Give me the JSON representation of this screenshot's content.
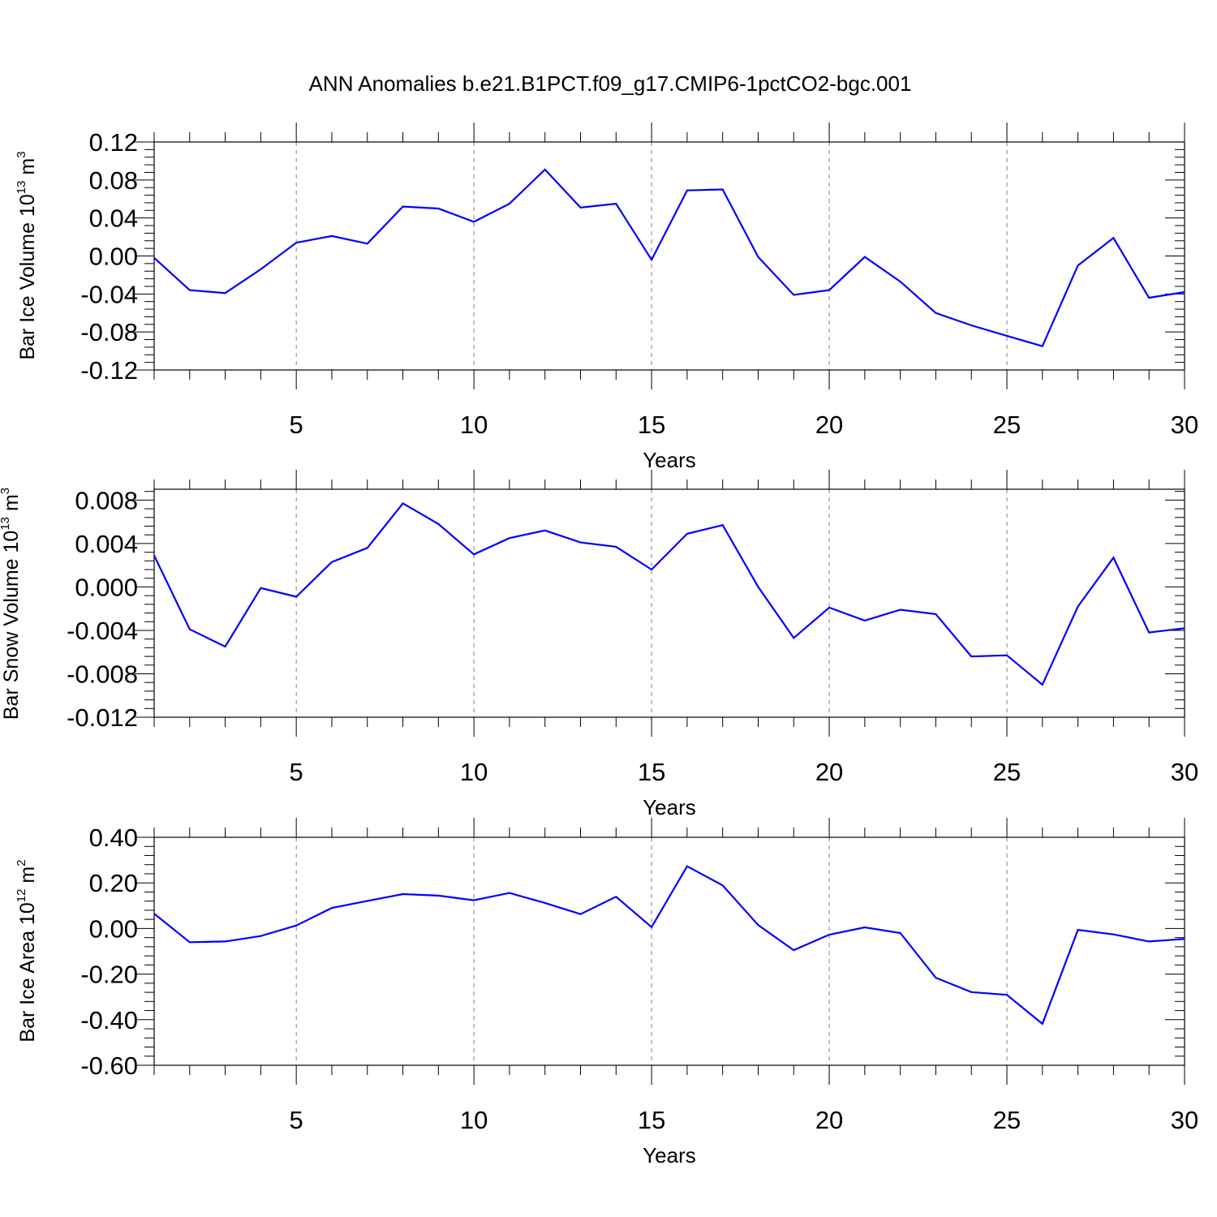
{
  "figure": {
    "title": "ANN Anomalies b.e21.B1PCT.f09_g17.CMIP6-1pctCO2-bgc.001",
    "line_color": "#0000ff"
  },
  "chart_data": [
    {
      "type": "line",
      "ylabel": {
        "main": "Bar Ice Volume 10",
        "exp": "13",
        "unit": " m",
        "unit_exp": "3"
      },
      "xlabel": "Years",
      "xlim": [
        1,
        30
      ],
      "ylim": [
        -0.12,
        0.12
      ],
      "xticks": [
        5,
        10,
        15,
        20,
        25,
        30
      ],
      "yticks": [
        -0.12,
        -0.08,
        -0.04,
        0.0,
        0.04,
        0.08,
        0.12
      ],
      "ytick_labels": [
        "-0.12",
        "-0.08",
        "-0.04",
        "0.00",
        "0.04",
        "0.08",
        "0.12"
      ],
      "grid": "vertical dashed at major x ticks",
      "series": [
        {
          "x": [
            1,
            2,
            3,
            4,
            5,
            6,
            7,
            8,
            9,
            10,
            11,
            12,
            13,
            14,
            15,
            16,
            17,
            18,
            19,
            20,
            21,
            22,
            23,
            24,
            25,
            26,
            27,
            28,
            29,
            30
          ],
          "values": [
            -0.002,
            -0.036,
            -0.039,
            -0.014,
            0.014,
            0.021,
            0.013,
            0.052,
            0.05,
            0.036,
            0.055,
            0.091,
            0.051,
            0.055,
            -0.004,
            0.069,
            0.07,
            -0.001,
            -0.041,
            -0.036,
            -0.001,
            -0.027,
            -0.06,
            -0.073,
            -0.084,
            -0.095,
            -0.01,
            0.019,
            -0.044,
            -0.038
          ]
        }
      ]
    },
    {
      "type": "line",
      "ylabel": {
        "main": "Bar Snow Volume 10",
        "exp": "13",
        "unit": " m",
        "unit_exp": "3"
      },
      "xlabel": "Years",
      "xlim": [
        1,
        30
      ],
      "ylim": [
        -0.012,
        0.009
      ],
      "xticks": [
        5,
        10,
        15,
        20,
        25,
        30
      ],
      "yticks": [
        -0.012,
        -0.008,
        -0.004,
        0.0,
        0.004,
        0.008
      ],
      "ytick_labels": [
        "-0.012",
        "-0.008",
        "-0.004",
        "0.000",
        "0.004",
        "0.008"
      ],
      "grid": "vertical dashed at major x ticks",
      "series": [
        {
          "x": [
            1,
            2,
            3,
            4,
            5,
            6,
            7,
            8,
            9,
            10,
            11,
            12,
            13,
            14,
            15,
            16,
            17,
            18,
            19,
            20,
            21,
            22,
            23,
            24,
            25,
            26,
            27,
            28,
            29,
            30
          ],
          "values": [
            0.0029,
            -0.0039,
            -0.0055,
            -0.0001,
            -0.0009,
            0.0023,
            0.0036,
            0.0077,
            0.0058,
            0.003,
            0.0045,
            0.0052,
            0.0041,
            0.0037,
            0.0016,
            0.0049,
            0.0057,
            0.0,
            -0.0047,
            -0.0019,
            -0.0031,
            -0.0021,
            -0.0025,
            -0.0064,
            -0.0063,
            -0.009,
            -0.0018,
            0.0027,
            -0.0042,
            -0.0038
          ]
        }
      ]
    },
    {
      "type": "line",
      "ylabel": {
        "main": "Bar Ice Area 10",
        "exp": "12",
        "unit": " m",
        "unit_exp": "2"
      },
      "xlabel": "Years",
      "xlim": [
        1,
        30
      ],
      "ylim": [
        -0.6,
        0.4
      ],
      "xticks": [
        5,
        10,
        15,
        20,
        25,
        30
      ],
      "yticks": [
        -0.6,
        -0.4,
        -0.2,
        0.0,
        0.2,
        0.4
      ],
      "ytick_labels": [
        "-0.60",
        "-0.40",
        "-0.20",
        "0.00",
        "0.20",
        "0.40"
      ],
      "grid": "vertical dashed at major x ticks",
      "series": [
        {
          "x": [
            1,
            2,
            3,
            4,
            5,
            6,
            7,
            8,
            9,
            10,
            11,
            12,
            13,
            14,
            15,
            16,
            17,
            18,
            19,
            20,
            21,
            22,
            23,
            24,
            25,
            26,
            27,
            28,
            29,
            30
          ],
          "values": [
            0.065,
            -0.06,
            -0.057,
            -0.033,
            0.013,
            0.09,
            0.121,
            0.151,
            0.144,
            0.124,
            0.156,
            0.112,
            0.063,
            0.139,
            0.006,
            0.273,
            0.189,
            0.015,
            -0.095,
            -0.027,
            0.005,
            -0.02,
            -0.216,
            -0.279,
            -0.291,
            -0.418,
            -0.006,
            -0.026,
            -0.057,
            -0.046
          ]
        }
      ]
    }
  ]
}
